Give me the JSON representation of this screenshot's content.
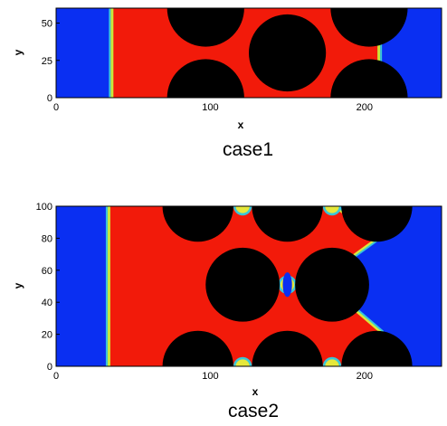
{
  "chart_data": [
    {
      "type": "heatmap",
      "caption": "case1",
      "xlabel": "x",
      "ylabel": "y",
      "xlim": [
        0,
        250
      ],
      "ylim": [
        0,
        60
      ],
      "xticks": [
        0,
        100,
        200
      ],
      "yticks": [
        0,
        25,
        50
      ],
      "colors": {
        "outside": "#0a2ff2",
        "inside": "#f21a0a",
        "obstacle": "#000000"
      },
      "front_left_x": 36,
      "front_right_x": 209,
      "obstacles": [
        {
          "cx": 97,
          "cy": 60,
          "r": 25
        },
        {
          "cx": 97,
          "cy": 0,
          "r": 25
        },
        {
          "cx": 150,
          "cy": 30,
          "r": 25
        },
        {
          "cx": 203,
          "cy": 60,
          "r": 25
        },
        {
          "cx": 203,
          "cy": 0,
          "r": 25
        }
      ]
    },
    {
      "type": "heatmap",
      "caption": "case2",
      "xlabel": "x",
      "ylabel": "y",
      "xlim": [
        0,
        250
      ],
      "ylim": [
        0,
        100
      ],
      "xticks": [
        0,
        100,
        200
      ],
      "yticks": [
        0,
        20,
        40,
        60,
        80,
        100
      ],
      "colors": {
        "outside": "#0a2ff2",
        "inside": "#f21a0a",
        "obstacle": "#000000"
      },
      "front_left_x": 34,
      "obstacles": [
        {
          "cx": 92,
          "cy": 100,
          "r": 23
        },
        {
          "cx": 150,
          "cy": 100,
          "r": 23
        },
        {
          "cx": 208,
          "cy": 100,
          "r": 23
        },
        {
          "cx": 92,
          "cy": 0,
          "r": 23
        },
        {
          "cx": 150,
          "cy": 0,
          "r": 23
        },
        {
          "cx": 208,
          "cy": 0,
          "r": 23
        },
        {
          "cx": 121,
          "cy": 51,
          "r": 24
        },
        {
          "cx": 179,
          "cy": 51,
          "r": 24
        }
      ],
      "right_interface": [
        [
          180,
          100
        ],
        [
          210,
          81
        ],
        [
          187,
          65
        ],
        [
          187,
          41
        ],
        [
          210,
          22
        ],
        [
          198,
          0
        ]
      ]
    }
  ]
}
